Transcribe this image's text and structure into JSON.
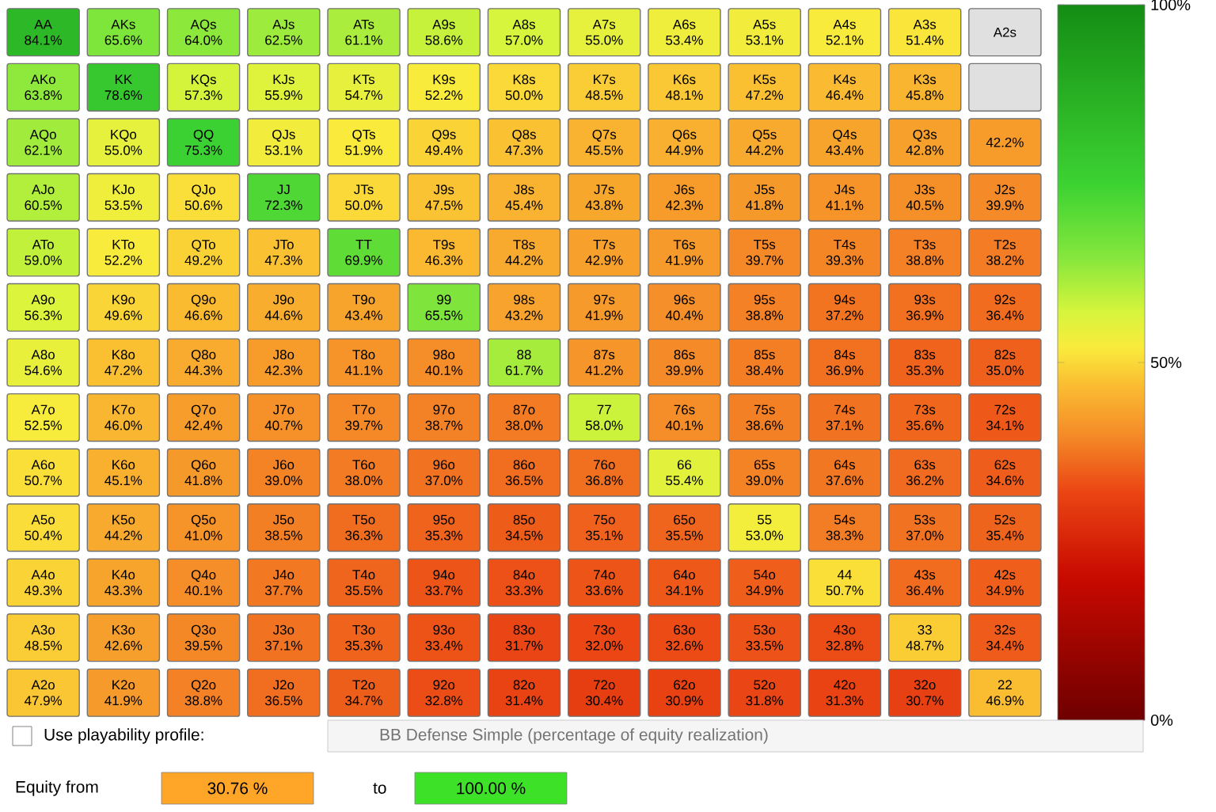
{
  "chart_data": {
    "type": "heatmap",
    "categories": [
      null,
      null,
      null,
      null,
      null,
      null,
      null,
      null,
      null,
      null,
      null,
      null,
      null
    ],
    "y_categories": [
      null,
      null,
      null,
      null,
      null,
      null,
      null,
      null,
      null,
      null,
      null,
      null,
      null
    ],
    "cells": [
      [
        84.1,
        65.6,
        64.0,
        62.5,
        61.1,
        58.6,
        57.0,
        55.0,
        53.4,
        53.1,
        52.1,
        51.4,
        null
      ],
      [
        63.8,
        78.6,
        57.3,
        55.9,
        54.7,
        52.2,
        50.0,
        48.5,
        48.1,
        47.2,
        46.4,
        45.8,
        null
      ],
      [
        62.1,
        55.0,
        75.3,
        53.1,
        51.9,
        49.4,
        47.3,
        45.5,
        44.9,
        44.2,
        43.4,
        42.8,
        42.2
      ],
      [
        60.5,
        53.5,
        50.6,
        72.3,
        50.0,
        47.5,
        45.4,
        43.8,
        42.3,
        41.8,
        41.1,
        40.5,
        39.9
      ],
      [
        59.0,
        52.2,
        49.2,
        47.3,
        69.9,
        46.3,
        44.2,
        42.9,
        41.9,
        39.7,
        39.3,
        38.8,
        38.2
      ],
      [
        56.3,
        49.6,
        46.6,
        44.6,
        43.4,
        65.5,
        43.2,
        41.9,
        40.4,
        38.8,
        37.2,
        36.9,
        36.4
      ],
      [
        54.6,
        47.2,
        44.3,
        42.3,
        41.1,
        40.1,
        61.7,
        41.2,
        39.9,
        38.4,
        36.9,
        35.3,
        35.0
      ],
      [
        52.5,
        46.0,
        42.4,
        40.7,
        39.7,
        38.7,
        38.0,
        58.0,
        40.1,
        38.6,
        37.1,
        35.6,
        34.1
      ],
      [
        50.7,
        45.1,
        41.8,
        39.0,
        38.0,
        37.0,
        36.5,
        36.8,
        55.4,
        39.0,
        37.6,
        36.2,
        34.6
      ],
      [
        50.4,
        44.2,
        41.0,
        38.5,
        36.3,
        35.3,
        34.5,
        35.1,
        35.5,
        53.0,
        38.3,
        37.0,
        35.4
      ],
      [
        49.3,
        43.3,
        40.1,
        37.7,
        35.5,
        33.7,
        33.3,
        33.6,
        34.1,
        34.9,
        50.7,
        36.4,
        34.9
      ],
      [
        48.5,
        42.6,
        39.5,
        37.1,
        35.3,
        33.4,
        31.7,
        32.0,
        32.6,
        33.5,
        32.8,
        48.7,
        34.4
      ],
      [
        47.9,
        41.9,
        38.8,
        36.5,
        34.7,
        32.8,
        31.4,
        30.4,
        30.9,
        31.8,
        31.3,
        30.7,
        46.9
      ]
    ],
    "cell_labels": [
      [
        "AA 84.1%",
        "AKs 65.6%",
        "AQs 64.0%",
        "AJs 62.5%",
        "ATs 61.1%",
        "A9s 58.6%",
        "A8s 57.0%",
        "A7s 55.0%",
        "A6s 53.4%",
        "A5s 53.1%",
        "A4s 52.1%",
        "A3s 51.4%",
        "A2s"
      ],
      [
        "AKo 63.8%",
        "KK 78.6%",
        "KQs 57.3%",
        "KJs 55.9%",
        "KTs 54.7%",
        "K9s 52.2%",
        "K8s 50.0%",
        "K7s 48.5%",
        "K6s 48.1%",
        "K5s 47.2%",
        "K4s 46.4%",
        "K3s 45.8%",
        null
      ],
      [
        "AQo 62.1%",
        "KQo 55.0%",
        "QQ 75.3%",
        "QJs 53.1%",
        "QTs 51.9%",
        "Q9s 49.4%",
        "Q8s 47.3%",
        "Q7s 45.5%",
        "Q6s 44.9%",
        "Q5s 44.2%",
        "Q4s 43.4%",
        "Q3s 42.8%",
        "42.2%"
      ],
      [
        "AJo 60.5%",
        "KJo 53.5%",
        "QJo 50.6%",
        "JJ 72.3%",
        "JTs 50.0%",
        "J9s 47.5%",
        "J8s 45.4%",
        "J7s 43.8%",
        "J6s 42.3%",
        "J5s 41.8%",
        "J4s 41.1%",
        "J3s 40.5%",
        "J2s 39.9%"
      ],
      [
        "ATo 59.0%",
        "KTo 52.2%",
        "QTo 49.2%",
        "JTo 47.3%",
        "TT 69.9%",
        "T9s 46.3%",
        "T8s 44.2%",
        "T7s 42.9%",
        "T6s 41.9%",
        "T5s 39.7%",
        "T4s 39.3%",
        "T3s 38.8%",
        "T2s 38.2%"
      ],
      [
        "A9o 56.3%",
        "K9o 49.6%",
        "Q9o 46.6%",
        "J9o 44.6%",
        "T9o 43.4%",
        "99 65.5%",
        "98s 43.2%",
        "97s 41.9%",
        "96s 40.4%",
        "95s 38.8%",
        "94s 37.2%",
        "93s 36.9%",
        "92s 36.4%"
      ],
      [
        "A8o 54.6%",
        "K8o 47.2%",
        "Q8o 44.3%",
        "J8o 42.3%",
        "T8o 41.1%",
        "98o 40.1%",
        "88 61.7%",
        "87s 41.2%",
        "86s 39.9%",
        "85s 38.4%",
        "84s 36.9%",
        "83s 35.3%",
        "82s 35.0%"
      ],
      [
        "A7o 52.5%",
        "K7o 46.0%",
        "Q7o 42.4%",
        "J7o 40.7%",
        "T7o 39.7%",
        "97o 38.7%",
        "87o 38.0%",
        "77 58.0%",
        "76s 40.1%",
        "75s 38.6%",
        "74s 37.1%",
        "73s 35.6%",
        "72s 34.1%"
      ],
      [
        "A6o 50.7%",
        "K6o 45.1%",
        "Q6o 41.8%",
        "J6o 39.0%",
        "T6o 38.0%",
        "96o 37.0%",
        "86o 36.5%",
        "76o 36.8%",
        "66 55.4%",
        "65s 39.0%",
        "64s 37.6%",
        "63s 36.2%",
        "62s 34.6%"
      ],
      [
        "A5o 50.4%",
        "K5o 44.2%",
        "Q5o 41.0%",
        "J5o 38.5%",
        "T5o 36.3%",
        "95o 35.3%",
        "85o 34.5%",
        "75o 35.1%",
        "65o 35.5%",
        "55 53.0%",
        "54s 38.3%",
        "53s 37.0%",
        "52s 35.4%"
      ],
      [
        "A4o 49.3%",
        "K4o 43.3%",
        "Q4o 40.1%",
        "J4o 37.7%",
        "T4o 35.5%",
        "94o 33.7%",
        "84o 33.3%",
        "74o 33.6%",
        "64o 34.1%",
        "54o 34.9%",
        "44 50.7%",
        "43s 36.4%",
        "42s 34.9%"
      ],
      [
        "A3o 48.5%",
        "K3o 42.6%",
        "Q3o 39.5%",
        "J3o 37.1%",
        "T3o 35.3%",
        "93o 33.4%",
        "83o 31.7%",
        "73o 32.0%",
        "63o 32.6%",
        "53o 33.5%",
        "43o 32.8%",
        "33 48.7%",
        "32s 34.4%"
      ],
      [
        "A2o 47.9%",
        "K2o 41.9%",
        "Q2o 38.8%",
        "J2o 36.5%",
        "T2o 34.7%",
        "92o 32.8%",
        "82o 31.4%",
        "72o 30.4%",
        "62o 30.9%",
        "52o 31.8%",
        "42o 31.3%",
        "32o 30.7%",
        "22 46.9%"
      ]
    ],
    "clim": [
      0,
      100
    ],
    "cticks": [
      {
        "value": 0,
        "label": "0%"
      },
      {
        "value": 50,
        "label": "50%"
      },
      {
        "value": 100,
        "label": "100%"
      }
    ],
    "annotations": [
      "Use playability profile:",
      "BB Defense Simple (percentage of equity realization)",
      "Equity from",
      "30.76 %",
      "to",
      "100.00 %"
    ]
  }
}
